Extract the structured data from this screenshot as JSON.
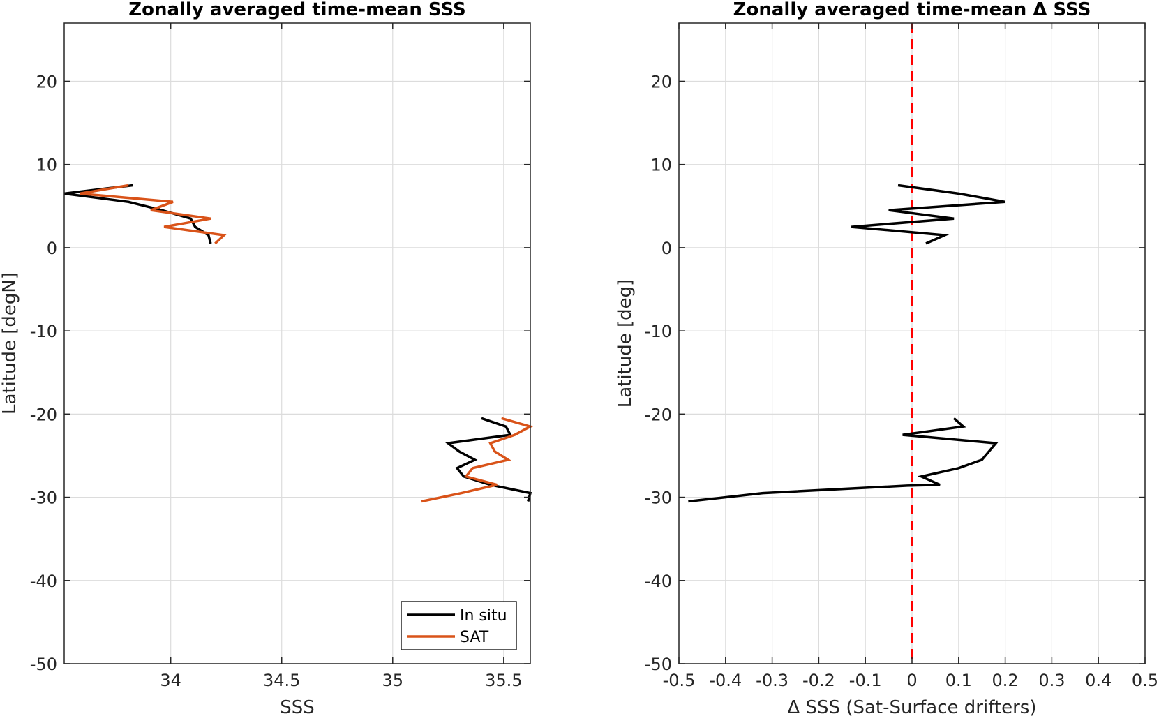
{
  "chart_data": [
    {
      "type": "line",
      "title": "Zonally averaged time-mean SSS",
      "xlabel": "SSS",
      "ylabel": "Latitude [degN]",
      "xlim": [
        33.52,
        35.62
      ],
      "ylim": [
        -50,
        27
      ],
      "xticks": [
        34,
        34.5,
        35,
        35.5
      ],
      "xtick_labels": [
        "34",
        "34.5",
        "35",
        "35.5"
      ],
      "yticks": [
        -50,
        -40,
        -30,
        -20,
        -10,
        0,
        10,
        20
      ],
      "ytick_labels": [
        "-50",
        "-40",
        "-30",
        "-20",
        "-10",
        "0",
        "10",
        "20"
      ],
      "grid": true,
      "legend": {
        "placement": "bottom-right",
        "entries": [
          {
            "name": "In situ",
            "color": "#000000"
          },
          {
            "name": "SAT",
            "color": "#D95319"
          }
        ]
      },
      "series": [
        {
          "name": "In situ",
          "color": "#000000",
          "segments": [
            [
              [
                33.83,
                7.5
              ],
              [
                33.52,
                6.5
              ],
              [
                33.81,
                5.5
              ],
              [
                33.96,
                4.5
              ],
              [
                34.09,
                3.5
              ],
              [
                34.11,
                2.5
              ],
              [
                34.17,
                1.5
              ],
              [
                34.18,
                0.5
              ]
            ],
            [
              [
                35.4,
                -20.5
              ],
              [
                35.51,
                -21.5
              ],
              [
                35.53,
                -22.5
              ],
              [
                35.25,
                -23.5
              ],
              [
                35.3,
                -24.5
              ],
              [
                35.37,
                -25.5
              ],
              [
                35.29,
                -26.5
              ],
              [
                35.32,
                -27.5
              ],
              [
                35.44,
                -28.5
              ],
              [
                35.62,
                -29.5
              ],
              [
                35.61,
                -30.5
              ]
            ]
          ]
        },
        {
          "name": "SAT",
          "color": "#D95319",
          "segments": [
            [
              [
                33.81,
                7.5
              ],
              [
                33.59,
                6.5
              ],
              [
                34.01,
                5.5
              ],
              [
                33.91,
                4.5
              ],
              [
                34.18,
                3.5
              ],
              [
                33.97,
                2.5
              ],
              [
                34.24,
                1.5
              ],
              [
                34.2,
                0.5
              ]
            ],
            [
              [
                35.49,
                -20.5
              ],
              [
                35.62,
                -21.5
              ],
              [
                35.55,
                -22.5
              ],
              [
                35.44,
                -23.5
              ],
              [
                35.46,
                -24.5
              ],
              [
                35.52,
                -25.5
              ],
              [
                35.36,
                -26.5
              ],
              [
                35.33,
                -27.5
              ],
              [
                35.47,
                -28.5
              ],
              [
                35.31,
                -29.5
              ],
              [
                35.13,
                -30.5
              ]
            ]
          ]
        }
      ]
    },
    {
      "type": "line",
      "title": "Zonally averaged time-mean Δ SSS",
      "xlabel": "Δ SSS (Sat-Surface drifters)",
      "ylabel": "Latitude [deg]",
      "xlim": [
        -0.5,
        0.5
      ],
      "ylim": [
        -50,
        27
      ],
      "xticks": [
        -0.5,
        -0.4,
        -0.3,
        -0.2,
        -0.1,
        0,
        0.1,
        0.2,
        0.3,
        0.4,
        0.5
      ],
      "xtick_labels": [
        "-0.5",
        "-0.4",
        "-0.3",
        "-0.2",
        "-0.1",
        "0",
        "0.1",
        "0.2",
        "0.3",
        "0.4",
        "0.5"
      ],
      "yticks": [
        -50,
        -40,
        -30,
        -20,
        -10,
        0,
        10,
        20
      ],
      "ytick_labels": [
        "-50",
        "-40",
        "-30",
        "-20",
        "-10",
        "0",
        "10",
        "20"
      ],
      "grid": true,
      "reference_line": {
        "x": 0,
        "color": "#FF0000",
        "style": "dashed"
      },
      "series": [
        {
          "color": "#000000",
          "segments": [
            [
              [
                -0.03,
                7.5
              ],
              [
                0.1,
                6.5
              ],
              [
                0.2,
                5.5
              ],
              [
                -0.05,
                4.5
              ],
              [
                0.09,
                3.5
              ],
              [
                -0.13,
                2.5
              ],
              [
                0.07,
                1.5
              ],
              [
                0.03,
                0.5
              ]
            ],
            [
              [
                0.09,
                -20.5
              ],
              [
                0.11,
                -21.5
              ],
              [
                -0.02,
                -22.5
              ],
              [
                0.18,
                -23.5
              ],
              [
                0.15,
                -25.5
              ],
              [
                0.1,
                -26.5
              ],
              [
                0.02,
                -27.5
              ],
              [
                0.06,
                -28.5
              ],
              [
                -0.01,
                -28.6
              ],
              [
                -0.32,
                -29.5
              ],
              [
                -0.48,
                -30.5
              ]
            ]
          ]
        }
      ]
    }
  ]
}
